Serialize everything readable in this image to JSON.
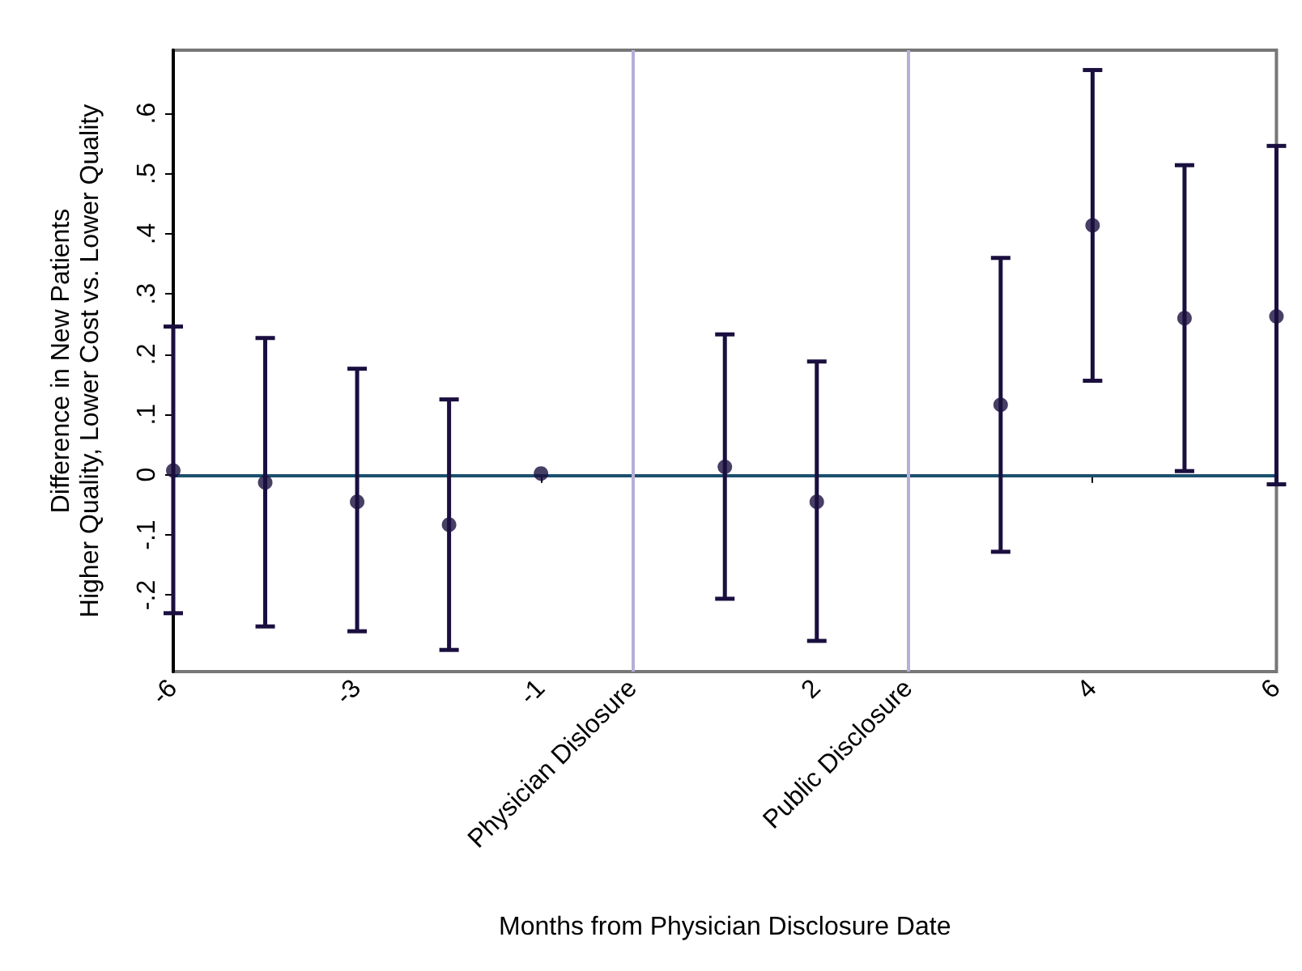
{
  "chart_data": {
    "type": "scatter",
    "xlabel": "Months from Physician Disclosure Date",
    "ylabel": "Difference in New Patients\nHigher Quality, Lower Cost vs. Lower Quality",
    "categories": [
      "-6",
      null,
      "-3",
      null,
      "-1",
      "Physician Dislosure",
      null,
      "2",
      "Public Disclosure",
      null,
      "4",
      null,
      "6"
    ],
    "series": [
      {
        "color": "#1a0f3f",
        "values": [
          0.007,
          -0.013,
          -0.045,
          -0.083,
          0.002,
          null,
          0.013,
          -0.045,
          null,
          0.116,
          0.414,
          0.26,
          0.263
        ],
        "errors": [
          [
            -0.23,
            0.246
          ],
          [
            -0.252,
            0.227
          ],
          [
            -0.26,
            0.176
          ],
          [
            -0.291,
            0.125
          ],
          null,
          null,
          [
            -0.206,
            0.233
          ],
          [
            -0.276,
            0.188
          ],
          null,
          [
            -0.128,
            0.36
          ],
          [
            0.156,
            0.672
          ],
          [
            0.006,
            0.514
          ],
          [
            -0.016,
            0.546
          ]
        ]
      }
    ],
    "ylim": [
      -0.327,
      0.705
    ],
    "yticks": [
      {
        "value": -0.2,
        "label": "-.2"
      },
      {
        "value": -0.1,
        "label": "-.1"
      },
      0,
      {
        "value": 0.1,
        "label": ".1"
      },
      {
        "value": 0.2,
        "label": ".2"
      },
      {
        "value": 0.3,
        "label": ".3"
      },
      {
        "value": 0.4,
        "label": ".4"
      },
      {
        "value": 0.5,
        "label": ".5"
      },
      {
        "value": 0.6,
        "label": ".6"
      }
    ],
    "ref_lines": [
      {
        "axis": "y",
        "value": 0,
        "color": "#1c4f6e"
      },
      {
        "axis": "x",
        "value": "Physician Dislosure",
        "color": "#b8aed8"
      },
      {
        "axis": "x",
        "value": "Public Disclosure",
        "color": "#b8aed8"
      }
    ],
    "marker": "circle",
    "grid": false
  }
}
